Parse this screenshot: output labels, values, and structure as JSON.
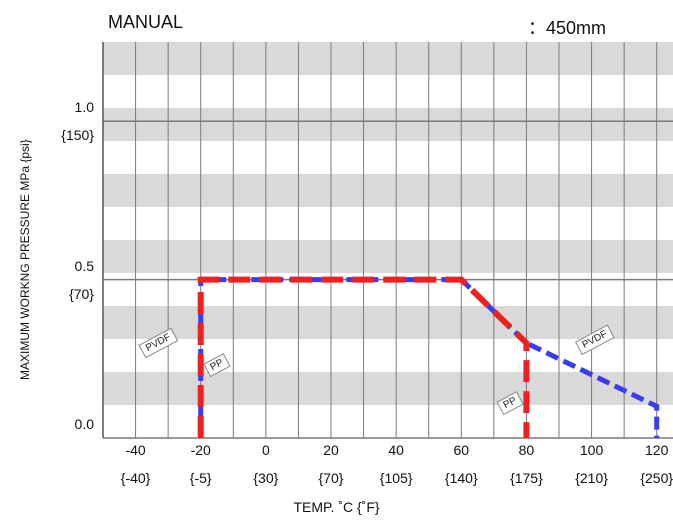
{
  "chart_data": {
    "type": "line",
    "title": "MANUAL",
    "subtitle": "：450mm",
    "xlabel": "TEMP. ˚C {˚F}",
    "ylabel": "MAXIMUM WORKNG PRESSURE   MPa {psi}",
    "xlim": [
      -50,
      125
    ],
    "ylim": [
      0,
      1.25
    ],
    "x_ticks": [
      {
        "value": -40,
        "c": "-40",
        "f": "{-40}"
      },
      {
        "value": -20,
        "c": "-20",
        "f": "{-5}"
      },
      {
        "value": 0,
        "c": "0",
        "f": "{30}"
      },
      {
        "value": 20,
        "c": "20",
        "f": "{70}"
      },
      {
        "value": 40,
        "c": "40",
        "f": "{105}"
      },
      {
        "value": 60,
        "c": "60",
        "f": "{140}"
      },
      {
        "value": 80,
        "c": "80",
        "f": "{175}"
      },
      {
        "value": 100,
        "c": "100",
        "f": "{210}"
      },
      {
        "value": 120,
        "c": "120",
        "f": "{250}"
      }
    ],
    "y_ticks": [
      {
        "value": 0,
        "mpa": "0.0",
        "psi": ""
      },
      {
        "value": 0.5,
        "mpa": "0.5",
        "psi": "{70}"
      },
      {
        "value": 1.0,
        "mpa": "1.0",
        "psi": "{150}"
      }
    ],
    "series": [
      {
        "name": "PVDF",
        "color": "#3b3bef",
        "x": [
          -20,
          -20,
          60,
          80,
          120,
          120
        ],
        "y": [
          0,
          0.5,
          0.5,
          0.3,
          0.1,
          0
        ]
      },
      {
        "name": "PP",
        "color": "#ee2020",
        "x": [
          -20,
          -20,
          60,
          80,
          80
        ],
        "y": [
          0,
          0.5,
          0.5,
          0.3,
          0
        ]
      }
    ],
    "annotations": [
      {
        "text": "PVDF",
        "x": -33,
        "y": 0.3,
        "color": "#3b3bef"
      },
      {
        "text": "PP",
        "x": -15,
        "y": 0.23,
        "color": "#ee2020"
      },
      {
        "text": "PP",
        "x": 75,
        "y": 0.11,
        "color": "#ee2020"
      },
      {
        "text": "PVDF",
        "x": 101,
        "y": 0.31,
        "color": "#3b3bef"
      }
    ],
    "band_color": "#d9d9d9",
    "grid": true
  }
}
